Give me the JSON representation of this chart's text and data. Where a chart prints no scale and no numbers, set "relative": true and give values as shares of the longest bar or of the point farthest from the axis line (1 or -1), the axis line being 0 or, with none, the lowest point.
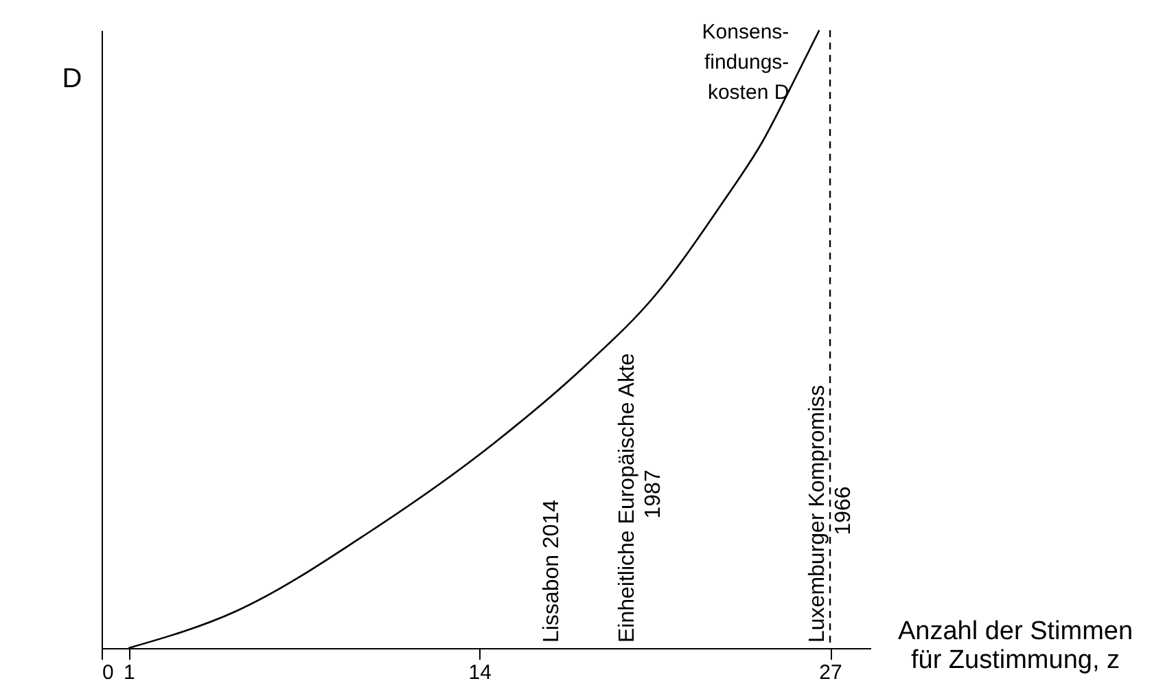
{
  "chart_data": {
    "type": "line",
    "relative": true,
    "xlabel": "Anzahl der Stimmen\nfür Zustimmung, z",
    "ylabel": "D",
    "xlim": [
      0,
      28.5
    ],
    "xticks": [
      0,
      1,
      14,
      27
    ],
    "grid": false,
    "series": [
      {
        "name": "Konsens-\nfindungs-\nkosten D",
        "color": "#000000",
        "x": [
          1,
          5,
          10,
          14.5,
          18,
          20.5,
          23,
          24.5,
          25.8,
          26.6
        ],
        "values": [
          0,
          0.06,
          0.19,
          0.33,
          0.46,
          0.57,
          0.72,
          0.82,
          0.93,
          1
        ]
      }
    ],
    "ref_lines": [
      {
        "axis": "x",
        "value": 27,
        "line_style": "dashed",
        "color": "#000000"
      }
    ],
    "annotations": [
      "Lissabon 2014",
      "Einheitliche  Europäische Akte\n1987",
      {
        "text": "Luxemburger  Kompromiss\n1966",
        "x": 27,
        "y": 0
      }
    ]
  }
}
